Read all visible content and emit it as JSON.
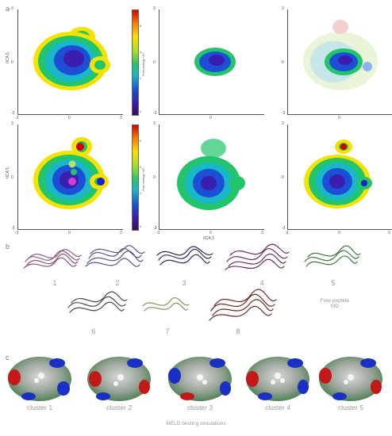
{
  "panels": {
    "a": "a",
    "b": "b",
    "c": "c"
  },
  "axes": {
    "xlabel": "tICA 3",
    "ylabel": "tICA 5",
    "ticks_x": [
      "-3",
      "0",
      "3"
    ],
    "ticks_y": [
      "3",
      "0",
      "-3"
    ]
  },
  "colorbar": {
    "title": "Free energy / kT",
    "ticks": [
      "8",
      "6",
      "4",
      "2",
      "0"
    ],
    "colors": [
      "#d40000",
      "#f6e200",
      "#22c46c",
      "#1c4ed6",
      "#3b0a5a"
    ]
  },
  "peptide_labels": [
    "1",
    "2",
    "3",
    "4",
    "5",
    "6",
    "7",
    "8"
  ],
  "free_peptide": {
    "line1": "Free peptide",
    "line2": "MD"
  },
  "clusters": [
    "cluster 1",
    "cluster 2",
    "cluster 3",
    "cluster 4",
    "cluster 5"
  ],
  "meld_label": "MELD binding simulations"
}
